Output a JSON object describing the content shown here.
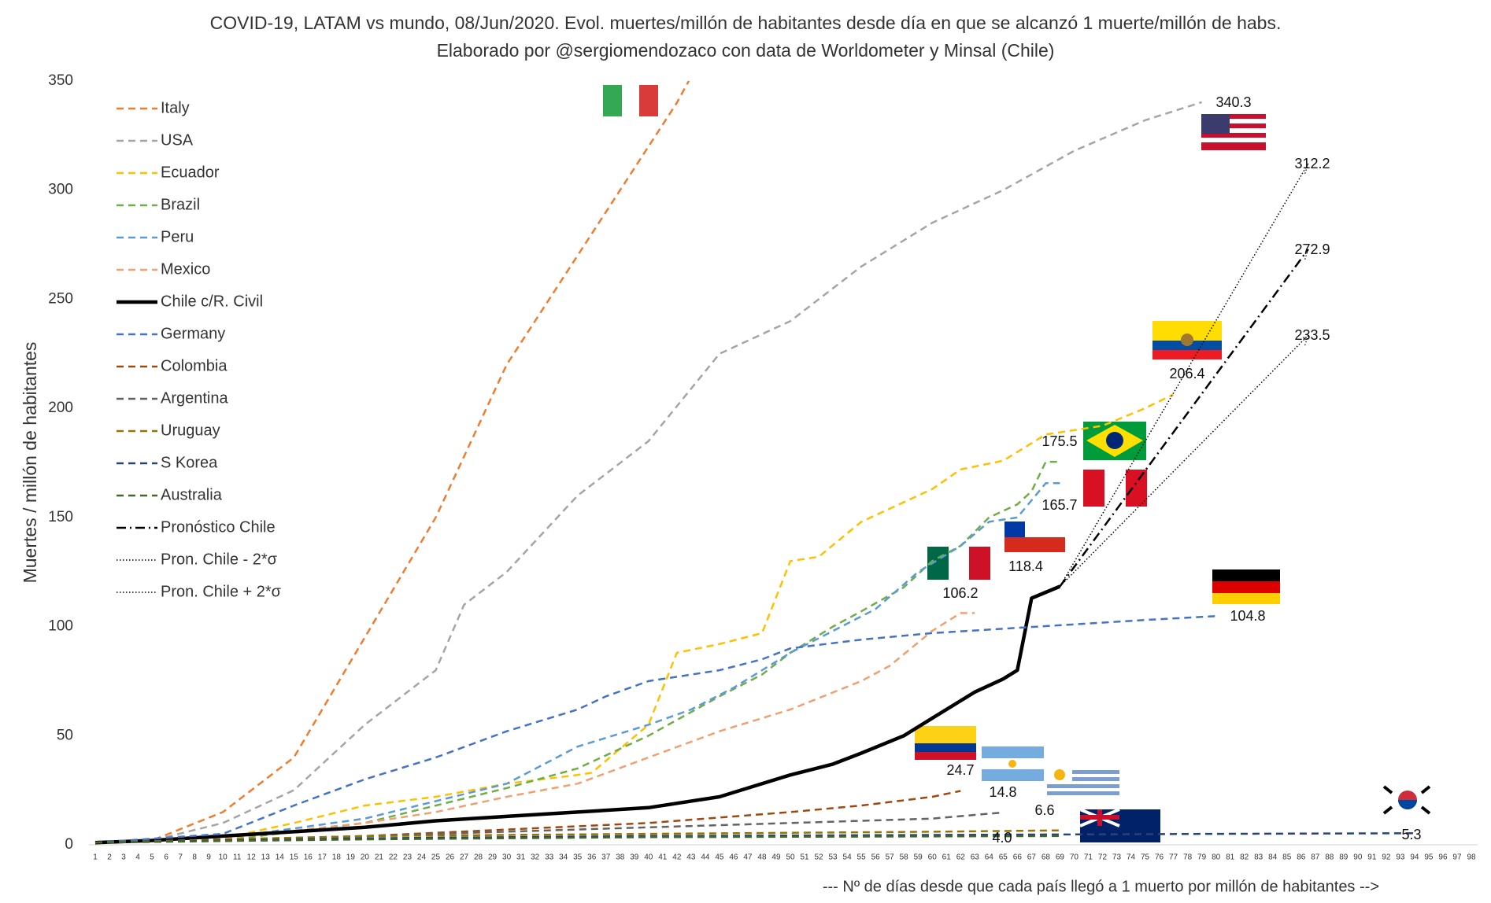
{
  "chart_data": {
    "type": "line",
    "title": "COVID-19, LATAM vs mundo, 08/Jun/2020. Evol. muertes/millón de habitantes desde día en que se alcanzó 1 muerte/millón de habs.",
    "subtitle": "Elaborado por @sergiomendozaco con data de Worldometer y Minsal (Chile)",
    "y_label": "Muertes / millón de habitantes",
    "x_label": "--- Nº de días desde que cada país llegó a 1 muerto por millón de habitantes -->",
    "xlim": [
      1,
      98
    ],
    "ylim": [
      0,
      350
    ],
    "xticks": [
      1,
      2,
      3,
      4,
      5,
      6,
      7,
      8,
      9,
      10,
      11,
      12,
      13,
      14,
      15,
      16,
      17,
      18,
      19,
      20,
      21,
      22,
      23,
      24,
      25,
      26,
      27,
      28,
      29,
      30,
      31,
      32,
      33,
      34,
      35,
      36,
      37,
      38,
      39,
      40,
      41,
      42,
      43,
      44,
      45,
      46,
      47,
      48,
      49,
      50,
      51,
      52,
      53,
      54,
      55,
      56,
      57,
      58,
      59,
      60,
      61,
      62,
      63,
      64,
      65,
      66,
      67,
      68,
      69,
      70,
      71,
      72,
      73,
      74,
      75,
      76,
      77,
      78,
      79,
      80,
      81,
      82,
      83,
      84,
      85,
      86,
      87,
      88,
      89,
      90,
      91,
      92,
      93,
      94,
      95,
      96,
      97,
      98
    ],
    "yticks": [
      0,
      50,
      100,
      150,
      200,
      250,
      300,
      350
    ],
    "grid": false,
    "legend": "upper left",
    "series": [
      {
        "name": "Italy",
        "color": "#ed7d31",
        "style": "dashed",
        "x": [
          1,
          5,
          10,
          15,
          20,
          25,
          30,
          35,
          40,
          42,
          43
        ],
        "values": [
          1,
          2,
          15,
          40,
          95,
          150,
          220,
          270,
          320,
          340,
          352
        ]
      },
      {
        "name": "USA",
        "color": "#a5a5a5",
        "style": "dashed",
        "x": [
          1,
          5,
          10,
          15,
          20,
          25,
          27,
          30,
          35,
          40,
          45,
          50,
          55,
          60,
          65,
          70,
          75,
          79
        ],
        "values": [
          1,
          2,
          10,
          25,
          55,
          80,
          110,
          125,
          160,
          185,
          225,
          240,
          265,
          285,
          300,
          318,
          332,
          340.3
        ],
        "end_label": "340.3"
      },
      {
        "name": "Ecuador",
        "color": "#ffc000",
        "style": "dashed",
        "x": [
          1,
          10,
          15,
          20,
          25,
          30,
          35,
          36,
          40,
          42,
          45,
          48,
          50,
          52,
          55,
          60,
          62,
          65,
          68,
          72,
          75,
          77
        ],
        "values": [
          1,
          3,
          10,
          18,
          22,
          28,
          32,
          33,
          55,
          88,
          92,
          97,
          130,
          132,
          148,
          163,
          172,
          176,
          188,
          192,
          200,
          206.4
        ],
        "end_label": "206.4"
      },
      {
        "name": "Brazil",
        "color": "#70ad47",
        "style": "dashed",
        "x": [
          1,
          10,
          20,
          25,
          30,
          35,
          40,
          45,
          48,
          50,
          53,
          55,
          58,
          60,
          62,
          64,
          66,
          67,
          68,
          69
        ],
        "values": [
          1,
          2,
          10,
          18,
          26,
          35,
          50,
          68,
          78,
          88,
          100,
          107,
          118,
          130,
          137,
          150,
          156,
          162,
          175.5,
          175.5
        ],
        "end_label": "175.5"
      },
      {
        "name": "Peru",
        "color": "#5b9bd5",
        "style": "dashed",
        "x": [
          1,
          10,
          20,
          25,
          30,
          35,
          40,
          43,
          46,
          50,
          53,
          56,
          59,
          62,
          64,
          66,
          68,
          69
        ],
        "values": [
          1,
          3,
          12,
          20,
          28,
          45,
          55,
          62,
          72,
          88,
          98,
          108,
          125,
          137,
          148,
          150,
          165.7,
          165.7
        ],
        "end_label": "165.7"
      },
      {
        "name": "Mexico",
        "color": "#f0a070",
        "style": "dashed",
        "x": [
          1,
          10,
          20,
          25,
          30,
          35,
          40,
          45,
          50,
          55,
          57,
          60,
          62,
          63
        ],
        "values": [
          1,
          3,
          10,
          15,
          22,
          28,
          40,
          52,
          62,
          75,
          82,
          98,
          106.2,
          106.2
        ],
        "end_label": "106.2"
      },
      {
        "name": "Chile c/R. Civil",
        "color": "#000000",
        "style": "solid",
        "x": [
          1,
          5,
          10,
          15,
          20,
          25,
          30,
          35,
          40,
          45,
          47,
          50,
          53,
          55,
          58,
          60,
          63,
          65,
          66,
          67,
          69
        ],
        "values": [
          1,
          2,
          4,
          6,
          8,
          11,
          13,
          15,
          17,
          22,
          26,
          32,
          37,
          42,
          50,
          58,
          70,
          76,
          80,
          113,
          118.4
        ],
        "end_label": "118.4"
      },
      {
        "name": "Germany",
        "color": "#4472c4",
        "style": "dashed",
        "x": [
          1,
          10,
          15,
          20,
          25,
          30,
          35,
          37,
          40,
          45,
          48,
          50,
          55,
          60,
          65,
          70,
          75,
          80
        ],
        "values": [
          1,
          5,
          18,
          30,
          40,
          52,
          62,
          68,
          75,
          80,
          85,
          90,
          94,
          97,
          99,
          101,
          103,
          104.8
        ],
        "end_label": "104.8"
      },
      {
        "name": "Colombia",
        "color": "#9e480e",
        "style": "dashed",
        "x": [
          1,
          10,
          20,
          30,
          40,
          50,
          55,
          60,
          62
        ],
        "values": [
          1,
          2,
          4,
          7,
          10,
          15,
          18,
          22,
          24.7
        ],
        "end_label": "24.7"
      },
      {
        "name": "Argentina",
        "color": "#636363",
        "style": "dashed",
        "x": [
          1,
          20,
          40,
          50,
          60,
          65
        ],
        "values": [
          1,
          4,
          8,
          10,
          12,
          14.8
        ],
        "end_label": "14.8"
      },
      {
        "name": "Uruguay",
        "color": "#997300",
        "style": "dashed",
        "x": [
          1,
          20,
          40,
          60,
          69
        ],
        "values": [
          1,
          4,
          5,
          6,
          6.6
        ],
        "end_label": "6.6"
      },
      {
        "name": "S Korea",
        "color": "#264478",
        "style": "dashed",
        "x": [
          1,
          20,
          40,
          60,
          80,
          94
        ],
        "values": [
          1,
          3,
          4,
          4.5,
          5,
          5.3
        ],
        "end_label": "5.3"
      },
      {
        "name": "Australia",
        "color": "#43682b",
        "style": "dashed",
        "x": [
          1,
          20,
          40,
          69
        ],
        "values": [
          1,
          2.5,
          3.5,
          4.0
        ],
        "end_label": "4.0"
      },
      {
        "name": "Pronóstico Chile",
        "color": "#000000",
        "style": "dashdot",
        "x": [
          69,
          86.5
        ],
        "values": [
          118.4,
          272.9
        ],
        "end_label": "272.9"
      },
      {
        "name": "Pron. Chile - 2*σ",
        "color": "#000000",
        "style": "dotted",
        "x": [
          69,
          86.5
        ],
        "values": [
          118.4,
          233.5
        ],
        "end_label": "233.5"
      },
      {
        "name": "Pron. Chile + 2*σ",
        "color": "#000000",
        "style": "dotted",
        "x": [
          69,
          86.5
        ],
        "values": [
          118.4,
          312.2
        ],
        "end_label": "312.2"
      }
    ]
  }
}
